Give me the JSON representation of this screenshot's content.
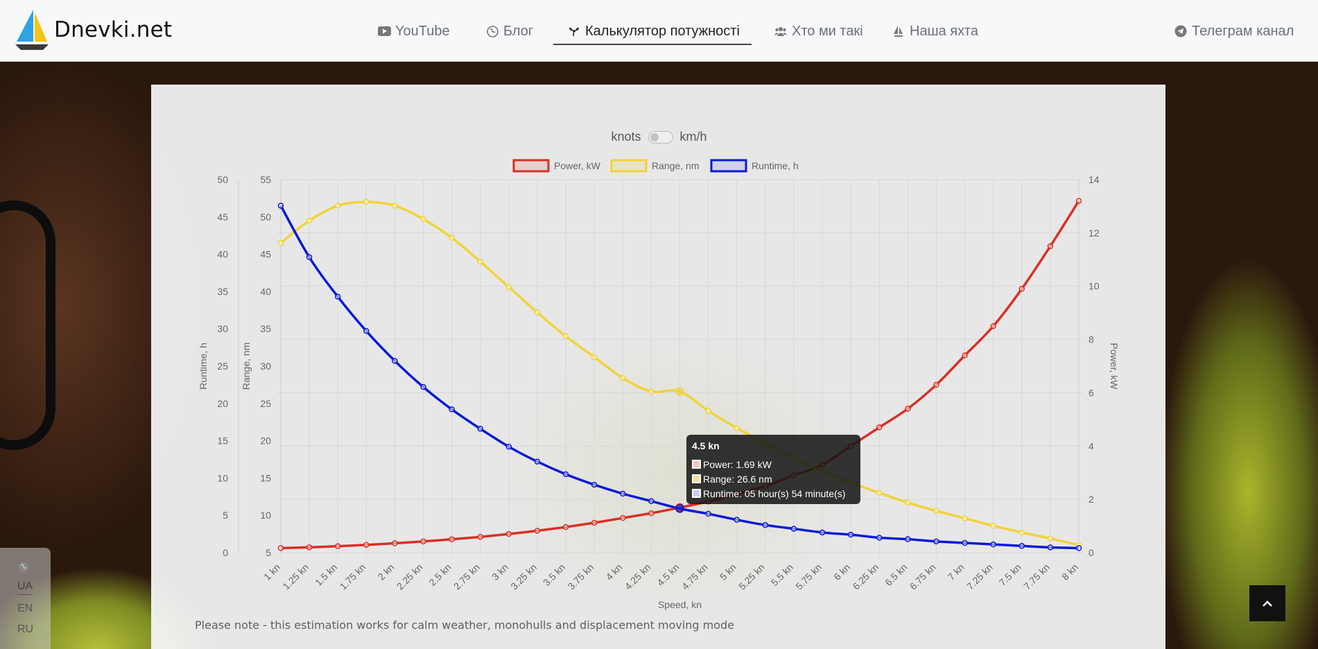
{
  "header": {
    "logo_text": "Dnevki.net",
    "nav": [
      {
        "label": "YouTube",
        "icon": "youtube-icon"
      },
      {
        "label": "Блог",
        "icon": "globe-icon"
      },
      {
        "label": "Калькулятор потужності",
        "icon": "propeller-icon",
        "active": true
      },
      {
        "label": "Хто ми такі",
        "icon": "users-icon"
      },
      {
        "label": "Наша яхта",
        "icon": "sailboat-icon"
      }
    ],
    "telegram": {
      "label": "Телеграм канал",
      "icon": "telegram-icon"
    }
  },
  "unit_toggle": {
    "left": "knots",
    "right": "km/h",
    "state": "knots"
  },
  "chart_data": {
    "type": "line",
    "x": [
      1,
      1.25,
      1.5,
      1.75,
      2,
      2.25,
      2.5,
      2.75,
      3,
      3.25,
      3.5,
      3.75,
      4,
      4.25,
      4.5,
      4.75,
      5,
      5.25,
      5.5,
      5.75,
      6,
      6.25,
      6.5,
      6.75,
      7,
      7.25,
      7.5,
      7.75,
      8
    ],
    "categories": [
      "1 kn",
      "1.25 kn",
      "1.5 kn",
      "1.75 kn",
      "2 kn",
      "2.25 kn",
      "2.5 kn",
      "2.75 kn",
      "3 kn",
      "3.25 kn",
      "3.5 kn",
      "3.75 kn",
      "4 kn",
      "4.25 kn",
      "4.5 kn",
      "4.75 kn",
      "5 kn",
      "5.25 kn",
      "5.5 kn",
      "5.75 kn",
      "6 kn",
      "6.25 kn",
      "6.5 kn",
      "6.75 kn",
      "7 kn",
      "7.25 kn",
      "7.5 kn",
      "7.75 kn",
      "8 kn"
    ],
    "xlabel": "Speed, kn",
    "axes": {
      "runtime": {
        "label": "Runtime, h",
        "min": 0,
        "max": 50,
        "ticks": [
          0,
          5,
          10,
          15,
          20,
          25,
          30,
          35,
          40,
          45,
          50
        ],
        "position": "left-outer"
      },
      "range": {
        "label": "Range, nm",
        "min": 5,
        "max": 55,
        "ticks": [
          5,
          10,
          15,
          20,
          25,
          30,
          35,
          40,
          45,
          50,
          55
        ],
        "position": "left-inner"
      },
      "power": {
        "label": "Power, kW",
        "min": 0,
        "max": 14,
        "ticks": [
          0,
          2,
          4,
          6,
          8,
          10,
          12,
          14
        ],
        "position": "right"
      }
    },
    "series": [
      {
        "name": "Power, kW",
        "axis": "power",
        "color": "#d93025",
        "values": [
          0.17,
          0.2,
          0.24,
          0.29,
          0.35,
          0.42,
          0.5,
          0.59,
          0.7,
          0.82,
          0.96,
          1.12,
          1.3,
          1.48,
          1.69,
          1.92,
          2.2,
          2.5,
          2.9,
          3.3,
          4.0,
          4.7,
          5.4,
          6.3,
          7.4,
          8.5,
          9.9,
          11.5,
          13.2
        ]
      },
      {
        "name": "Range, nm",
        "axis": "range",
        "color": "#f0d33a",
        "values": [
          46.5,
          49.5,
          51.5,
          52.0,
          51.5,
          49.7,
          47.2,
          44.0,
          40.6,
          37.2,
          34.0,
          31.2,
          28.4,
          26.6,
          26.6,
          24.0,
          21.7,
          19.6,
          17.7,
          15.9,
          14.4,
          13.0,
          11.7,
          10.6,
          9.6,
          8.6,
          7.7,
          6.9,
          6.0
        ]
      },
      {
        "name": "Runtime, h",
        "axis": "runtime",
        "color": "#0a1ad6",
        "values": [
          46.5,
          39.6,
          34.3,
          29.7,
          25.7,
          22.2,
          19.2,
          16.6,
          14.2,
          12.2,
          10.5,
          9.1,
          7.9,
          6.9,
          5.9,
          5.2,
          4.4,
          3.7,
          3.2,
          2.7,
          2.4,
          2.0,
          1.8,
          1.5,
          1.3,
          1.1,
          0.9,
          0.7,
          0.6
        ]
      }
    ],
    "legend": "top",
    "grid": true
  },
  "tooltip": {
    "title": "4.5 kn",
    "rows": [
      {
        "text": "Power: 1.69 kW",
        "color": "#d93025"
      },
      {
        "text": "Range: 26.6 nm",
        "color": "#f0d33a"
      },
      {
        "text": "Runtime: 05 hour(s) 54 minute(s)",
        "color": "#0a1ad6"
      }
    ]
  },
  "note": "Please note - this estimation works for calm weather, monohulls and displacement moving mode",
  "languages": [
    "UA",
    "EN",
    "RU"
  ]
}
